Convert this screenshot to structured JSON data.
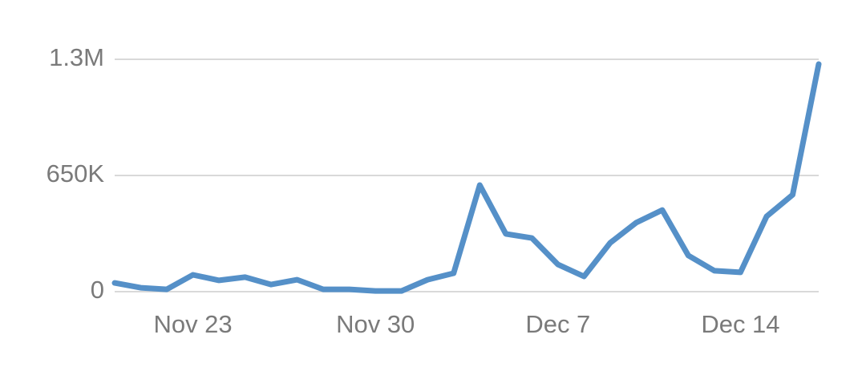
{
  "chart_data": {
    "type": "line",
    "categories": [
      null,
      null,
      null,
      "Nov 23",
      null,
      null,
      null,
      null,
      null,
      null,
      "Nov 30",
      null,
      null,
      null,
      null,
      null,
      null,
      "Dec 7",
      null,
      null,
      null,
      null,
      null,
      null,
      "Dec 14",
      null,
      null,
      null
    ],
    "series": [
      {
        "color": "#5590c8",
        "values": [
          49000,
          22000,
          13000,
          94000,
          63000,
          81000,
          40000,
          67000,
          13000,
          13000,
          4000,
          4000,
          67000,
          103000,
          596000,
          323000,
          300000,
          152000,
          85000,
          273000,
          386000,
          457000,
          202000,
          117000,
          108000,
          421000,
          542000,
          1273000
        ]
      }
    ],
    "ylim": [
      0,
      1300000
    ],
    "yticks": [
      0,
      {
        "value": 650000,
        "label": "650K"
      },
      {
        "value": 1300000,
        "label": "1.3M"
      }
    ],
    "grid": true
  }
}
